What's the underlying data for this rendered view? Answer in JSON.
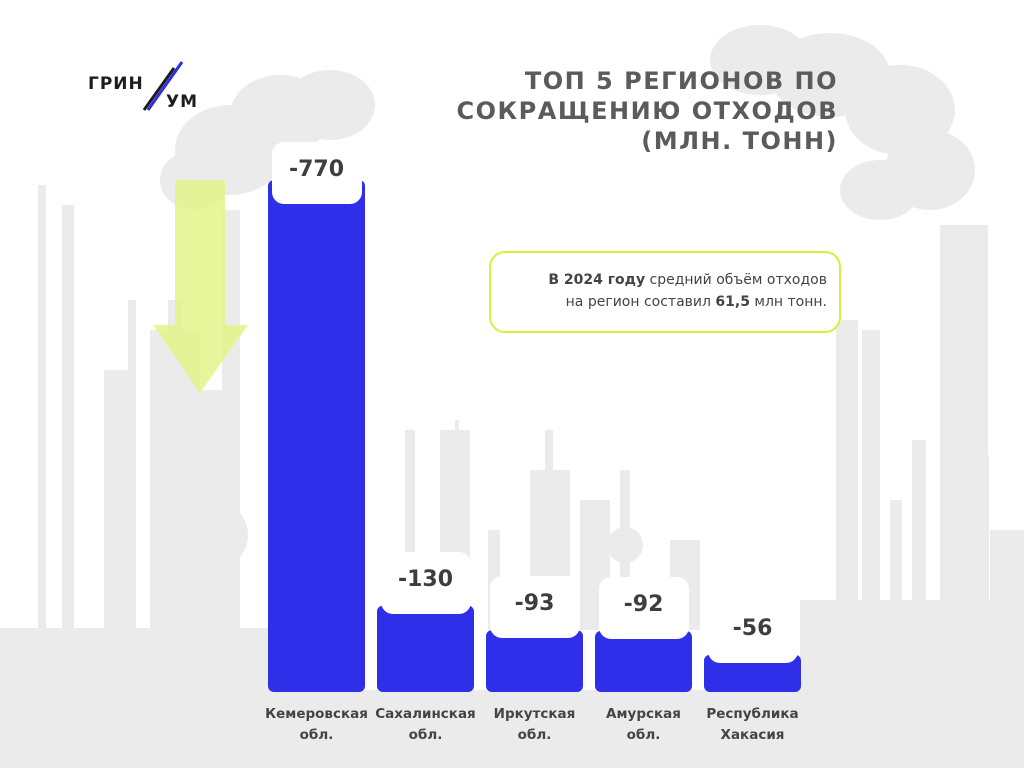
{
  "logo": {
    "line1": "ГРИН",
    "line2": "УМ",
    "slash_color": "#2f2ee8"
  },
  "title": {
    "lines": [
      "ТОП 5 РЕГИОНОВ ПО",
      "СОКРАЩЕНИЮ ОТХОДОВ",
      "(МЛН. ТОНН)"
    ]
  },
  "note": {
    "bold1": "В 2024 году",
    "text1": " средний объём отходов",
    "text2": "на регион составил ",
    "bold2": "61,5",
    "text3": " млн тонн."
  },
  "colors": {
    "bar": "#2f2ee8",
    "arrow": "#e4f58a",
    "border": "#d7f03f",
    "background_silhouette": "#ebebeb"
  },
  "icons": {
    "arrow": "down-arrow-icon"
  },
  "chart_data": {
    "type": "bar",
    "title": "ТОП 5 РЕГИОНОВ ПО СОКРАЩЕНИЮ ОТХОДОВ (МЛН. ТОНН)",
    "categories": [
      [
        "Кемеровская",
        "обл."
      ],
      [
        "Сахалинская",
        "обл."
      ],
      [
        "Иркутская",
        "обл."
      ],
      [
        "Амурская",
        "обл."
      ],
      [
        "Республика",
        "Хакасия"
      ]
    ],
    "values": [
      -770,
      -130,
      -93,
      -92,
      -56
    ],
    "value_labels": [
      "-770",
      "-130",
      "-93",
      "-92",
      "-56"
    ]
  }
}
